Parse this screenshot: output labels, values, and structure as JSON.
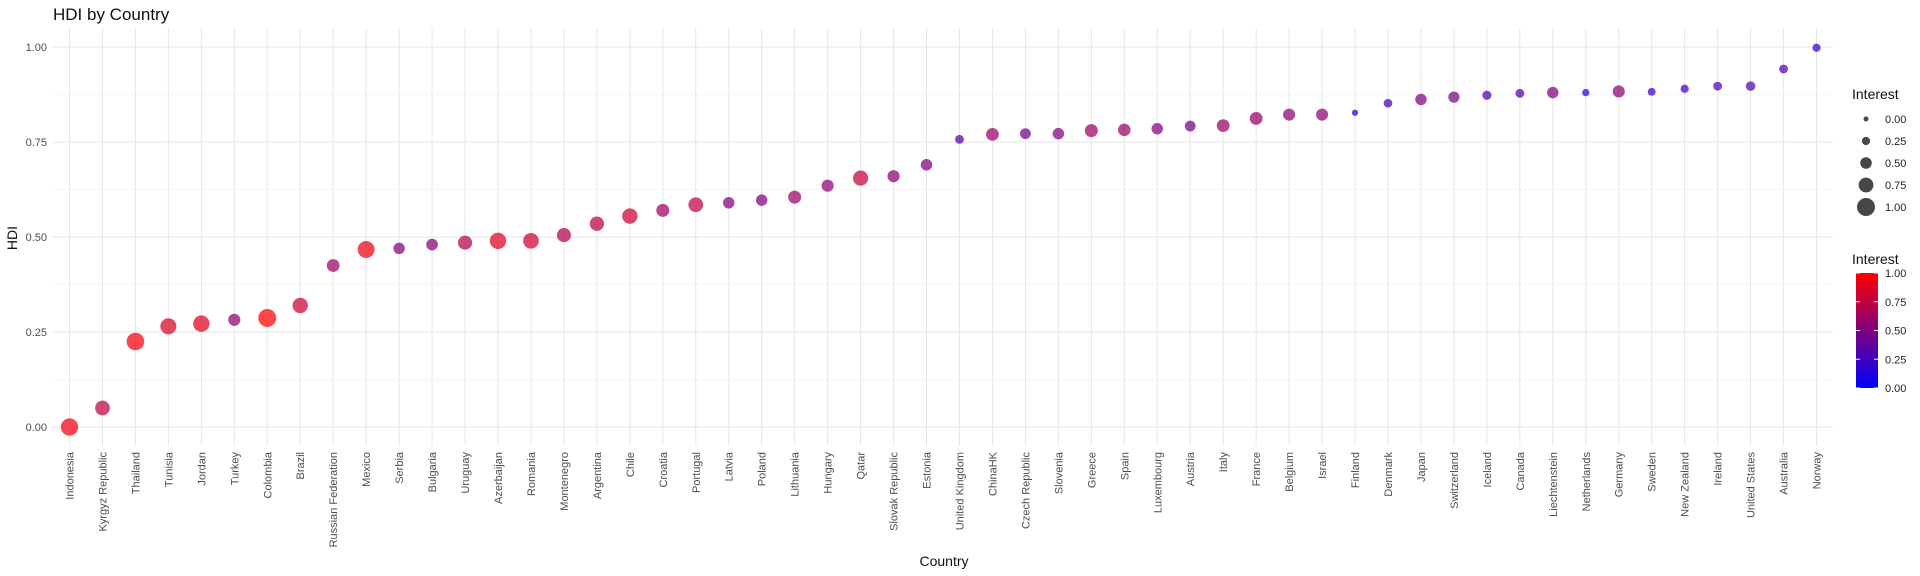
{
  "chart_data": {
    "type": "scatter",
    "title": "HDI by Country",
    "xlabel": "Country",
    "ylabel": "HDI",
    "ylim": [
      -0.05,
      1.05
    ],
    "y_ticks": [
      "0.00",
      "0.25",
      "0.50",
      "0.75",
      "1.00"
    ],
    "grid": true,
    "points": [
      {
        "country": "Indonesia",
        "hdi": 0.0,
        "interest": 0.95
      },
      {
        "country": "Kyrgyz Republic",
        "hdi": 0.05,
        "interest": 0.75
      },
      {
        "country": "Thailand",
        "hdi": 0.225,
        "interest": 0.97
      },
      {
        "country": "Tunisia",
        "hdi": 0.265,
        "interest": 0.85
      },
      {
        "country": "Jordan",
        "hdi": 0.272,
        "interest": 0.88
      },
      {
        "country": "Turkey",
        "hdi": 0.282,
        "interest": 0.55
      },
      {
        "country": "Colombia",
        "hdi": 0.287,
        "interest": 1.0
      },
      {
        "country": "Brazil",
        "hdi": 0.32,
        "interest": 0.8
      },
      {
        "country": "Russian Federation",
        "hdi": 0.425,
        "interest": 0.6
      },
      {
        "country": "Mexico",
        "hdi": 0.467,
        "interest": 0.92
      },
      {
        "country": "Serbia",
        "hdi": 0.47,
        "interest": 0.5
      },
      {
        "country": "Bulgaria",
        "hdi": 0.48,
        "interest": 0.52
      },
      {
        "country": "Uruguay",
        "hdi": 0.485,
        "interest": 0.7
      },
      {
        "country": "Azerbaijan",
        "hdi": 0.49,
        "interest": 0.88
      },
      {
        "country": "Romania",
        "hdi": 0.49,
        "interest": 0.82
      },
      {
        "country": "Montenegro",
        "hdi": 0.505,
        "interest": 0.7
      },
      {
        "country": "Argentina",
        "hdi": 0.535,
        "interest": 0.72
      },
      {
        "country": "Chile",
        "hdi": 0.555,
        "interest": 0.8
      },
      {
        "country": "Croatia",
        "hdi": 0.57,
        "interest": 0.62
      },
      {
        "country": "Portugal",
        "hdi": 0.585,
        "interest": 0.75
      },
      {
        "country": "Latvia",
        "hdi": 0.59,
        "interest": 0.5
      },
      {
        "country": "Poland",
        "hdi": 0.597,
        "interest": 0.5
      },
      {
        "country": "Lithuania",
        "hdi": 0.605,
        "interest": 0.62
      },
      {
        "country": "Hungary",
        "hdi": 0.635,
        "interest": 0.55
      },
      {
        "country": "Qatar",
        "hdi": 0.655,
        "interest": 0.78
      },
      {
        "country": "Slovak Republic",
        "hdi": 0.66,
        "interest": 0.55
      },
      {
        "country": "Estonia",
        "hdi": 0.69,
        "interest": 0.5
      },
      {
        "country": "United Kingdom",
        "hdi": 0.757,
        "interest": 0.3
      },
      {
        "country": "ChinaHK",
        "hdi": 0.77,
        "interest": 0.6
      },
      {
        "country": "Czech Republic",
        "hdi": 0.772,
        "interest": 0.45
      },
      {
        "country": "Slovenia",
        "hdi": 0.772,
        "interest": 0.5
      },
      {
        "country": "Greece",
        "hdi": 0.78,
        "interest": 0.62
      },
      {
        "country": "Spain",
        "hdi": 0.782,
        "interest": 0.58
      },
      {
        "country": "Luxembourg",
        "hdi": 0.785,
        "interest": 0.5
      },
      {
        "country": "Austria",
        "hdi": 0.792,
        "interest": 0.45
      },
      {
        "country": "Italy",
        "hdi": 0.793,
        "interest": 0.6
      },
      {
        "country": "France",
        "hdi": 0.812,
        "interest": 0.6
      },
      {
        "country": "Belgium",
        "hdi": 0.822,
        "interest": 0.55
      },
      {
        "country": "Israel",
        "hdi": 0.822,
        "interest": 0.55
      },
      {
        "country": "Finland",
        "hdi": 0.827,
        "interest": 0.1
      },
      {
        "country": "Denmark",
        "hdi": 0.852,
        "interest": 0.28
      },
      {
        "country": "Japan",
        "hdi": 0.862,
        "interest": 0.5
      },
      {
        "country": "Switzerland",
        "hdi": 0.868,
        "interest": 0.48
      },
      {
        "country": "Iceland",
        "hdi": 0.873,
        "interest": 0.32
      },
      {
        "country": "Canada",
        "hdi": 0.878,
        "interest": 0.3
      },
      {
        "country": "Liechtenstein",
        "hdi": 0.88,
        "interest": 0.5
      },
      {
        "country": "Netherlands",
        "hdi": 0.88,
        "interest": 0.18
      },
      {
        "country": "Germany",
        "hdi": 0.883,
        "interest": 0.55
      },
      {
        "country": "Sweden",
        "hdi": 0.882,
        "interest": 0.22
      },
      {
        "country": "New Zealand",
        "hdi": 0.89,
        "interest": 0.25
      },
      {
        "country": "Ireland",
        "hdi": 0.897,
        "interest": 0.3
      },
      {
        "country": "United States",
        "hdi": 0.897,
        "interest": 0.35
      },
      {
        "country": "Australia",
        "hdi": 0.942,
        "interest": 0.3
      },
      {
        "country": "Norway",
        "hdi": 0.998,
        "interest": 0.25
      }
    ],
    "legend_size": {
      "title": "Interest",
      "labels": [
        "0.00",
        "0.25",
        "0.50",
        "0.75",
        "1.00"
      ],
      "values": [
        0.0,
        0.25,
        0.5,
        0.75,
        1.0
      ]
    },
    "legend_color": {
      "title": "Interest",
      "labels": [
        "1.00",
        "0.75",
        "0.50",
        "0.25",
        "0.00"
      ],
      "values": [
        1.0,
        0.75,
        0.5,
        0.25,
        0.0
      ],
      "low_color": "#0000FF",
      "high_color": "#FF0000"
    },
    "legend_placement": "right"
  }
}
